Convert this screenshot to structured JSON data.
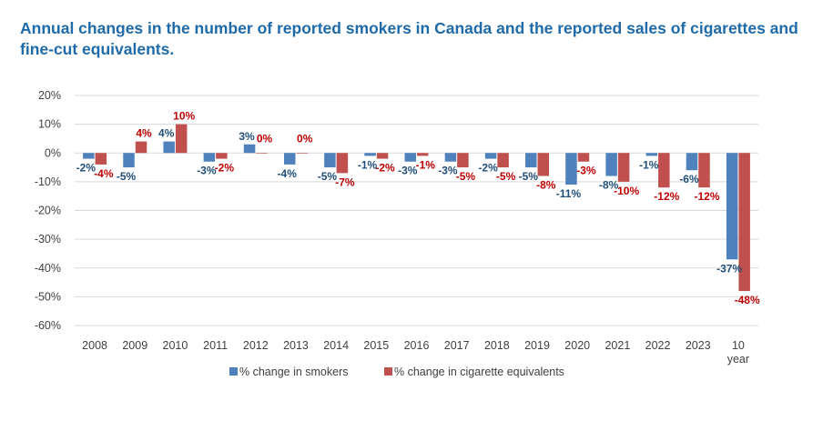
{
  "title_lines": [
    "Annual changes in the number of reported smokers in Canada and the reported sales of cigarettes and",
    "fine-cut equivalents."
  ],
  "colors": {
    "title": "#1f6aa8",
    "smokers": "#4f81bd",
    "cigarettes": "#c0504d",
    "smokers_label": "#1f4e79",
    "cigarettes_label": "#c00000",
    "grid": "#d9d9d9"
  },
  "chart_data": {
    "type": "bar",
    "categories": [
      [
        "2008"
      ],
      [
        "2009"
      ],
      [
        "2010"
      ],
      [
        "2011"
      ],
      [
        "2012"
      ],
      [
        "2013"
      ],
      [
        "2014"
      ],
      [
        "2015"
      ],
      [
        "2016"
      ],
      [
        "2017"
      ],
      [
        "2018"
      ],
      [
        "2019"
      ],
      [
        "2020"
      ],
      [
        "2021"
      ],
      [
        "2022"
      ],
      [
        "2023"
      ],
      [
        "10",
        "year"
      ]
    ],
    "series": [
      {
        "name": "% change in smokers",
        "color": "#4f81bd",
        "label_color": "#1f4e79",
        "values": [
          -2,
          -5,
          4,
          -3,
          3,
          -4,
          -5,
          -1,
          -3,
          -3,
          -2,
          -5,
          -11,
          -8,
          -1,
          -6,
          -37
        ],
        "labels": [
          "-2%",
          "-5%",
          "4%",
          "-3%",
          "3%",
          "-4%",
          "-5%",
          "-1%",
          "-3%",
          "-3%",
          "-2%",
          "-5%",
          "-11%",
          "-8%",
          "-1%",
          "-6%",
          "-37%"
        ]
      },
      {
        "name": "% change in cigarette equivalents",
        "color": "#c0504d",
        "label_color": "#c00000",
        "values": [
          -4,
          4,
          10,
          -2,
          0,
          0,
          -7,
          -2,
          -1,
          -5,
          -5,
          -8,
          -3,
          -10,
          -12,
          -12,
          -48
        ],
        "labels": [
          "-4%",
          "4%",
          "10%",
          "-2%",
          "0%",
          "0%",
          "-7%",
          "-2%",
          "-1%",
          "-5%",
          "-5%",
          "-8%",
          "-3%",
          "-10%",
          "-12%",
          "-12%",
          "-48%"
        ]
      }
    ],
    "yticks": [
      "20%",
      "10%",
      "0%",
      "-10%",
      "-20%",
      "-30%",
      "-40%",
      "-50%",
      "-60%"
    ],
    "ytick_values": [
      20,
      10,
      0,
      -10,
      -20,
      -30,
      -40,
      -50,
      -60
    ],
    "ylim": [
      -60,
      20
    ],
    "grid": true,
    "legend_position": "bottom"
  }
}
